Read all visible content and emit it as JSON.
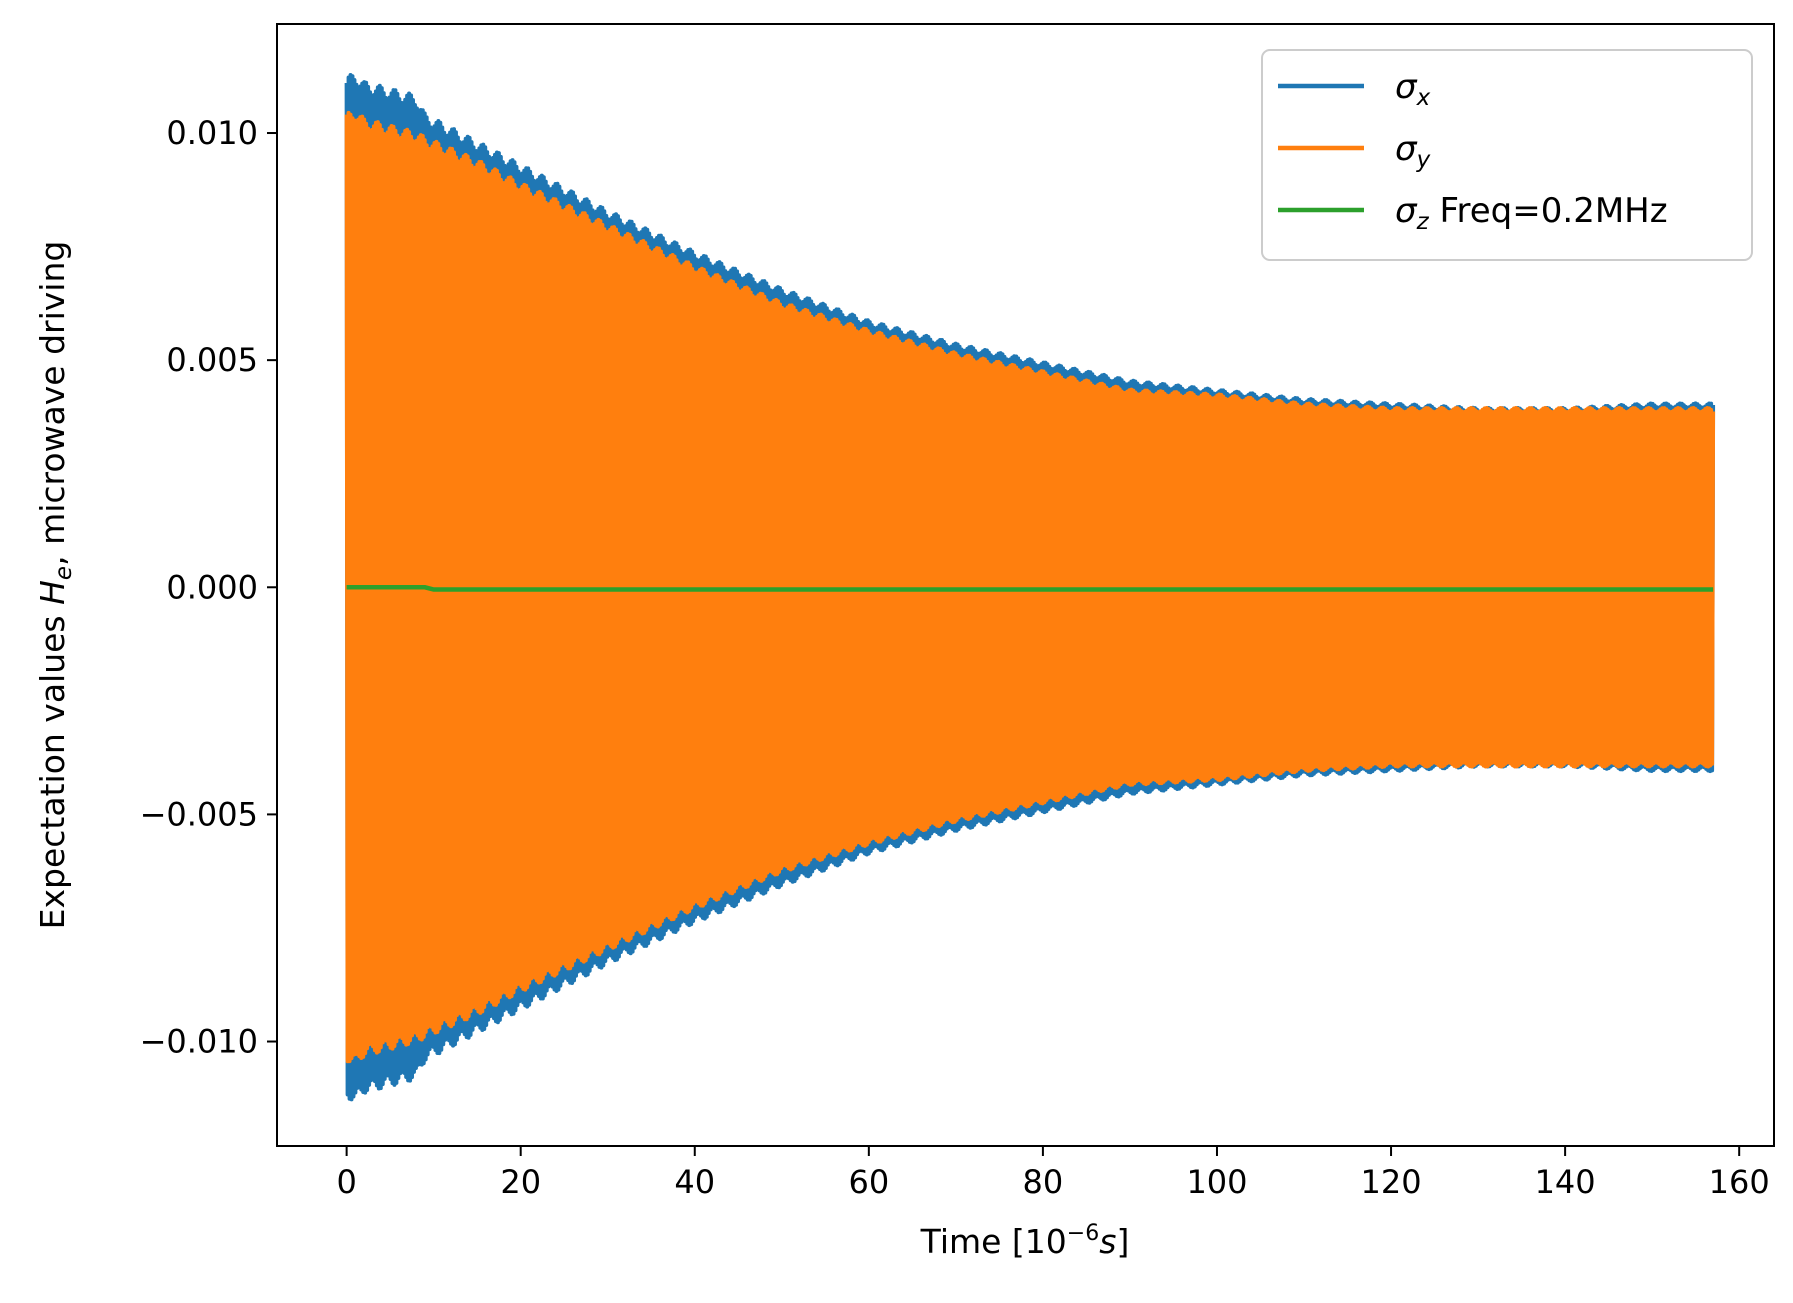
{
  "chart_data": {
    "type": "line",
    "title": "",
    "xlabel": "Time [10^{-6}s]",
    "xlabel_parts": {
      "pre": "Time [10",
      "sup": "−6",
      "s": "s",
      "post": "]"
    },
    "ylabel": "Expectation values H_e, microwave driving",
    "ylabel_parts": {
      "pre": "Expectation values ",
      "sym": "H",
      "sub": "e",
      "post": ", microwave driving"
    },
    "xlim": [
      -8,
      164
    ],
    "ylim": [
      -0.0123,
      0.0124
    ],
    "xticks": [
      0,
      20,
      40,
      60,
      80,
      100,
      120,
      140,
      160
    ],
    "xtick_labels": [
      "0",
      "20",
      "40",
      "60",
      "80",
      "100",
      "120",
      "140",
      "160"
    ],
    "yticks": [
      0.01,
      0.005,
      0.0,
      -0.005,
      -0.01
    ],
    "ytick_labels": [
      "0.010",
      "0.005",
      "0.000",
      "−0.005",
      "−0.010"
    ],
    "grid": false,
    "legend_position": "top-right",
    "series": [
      {
        "name": "σx",
        "legend_symbol": "σ",
        "legend_sub": "x",
        "legend_suffix": "",
        "color": "#1f77b4",
        "style": "fast-oscillation-envelope",
        "envelope_t": [
          0,
          1,
          2,
          4,
          6,
          8,
          9,
          15,
          20,
          30,
          40,
          50,
          60,
          70,
          80,
          90,
          100,
          110,
          120,
          130,
          140,
          150,
          157
        ],
        "envelope_amplitude": [
          0.0111,
          0.0112,
          0.011,
          0.0109,
          0.0108,
          0.0107,
          0.0103,
          0.0097,
          0.0092,
          0.0082,
          0.0073,
          0.0065,
          0.0058,
          0.0053,
          0.0049,
          0.0045,
          0.0043,
          0.0041,
          0.004,
          0.0039,
          0.0039,
          0.004,
          0.004
        ]
      },
      {
        "name": "σy",
        "legend_symbol": "σ",
        "legend_sub": "y",
        "legend_suffix": "",
        "color": "#ff7f0e",
        "style": "fast-oscillation-envelope",
        "envelope_t": [
          0,
          1,
          2,
          4,
          6,
          8,
          9,
          15,
          20,
          30,
          40,
          50,
          60,
          70,
          80,
          90,
          100,
          110,
          120,
          130,
          140,
          150,
          157
        ],
        "envelope_amplitude": [
          0.0103,
          0.0104,
          0.0102,
          0.0101,
          0.01,
          0.0099,
          0.0098,
          0.0093,
          0.0088,
          0.0079,
          0.007,
          0.0062,
          0.0056,
          0.0051,
          0.0047,
          0.0043,
          0.0042,
          0.004,
          0.0039,
          0.0039,
          0.0039,
          0.0039,
          0.0039
        ]
      },
      {
        "name": "σz Freq=0.2MHz",
        "legend_symbol": "σ",
        "legend_sub": "z",
        "legend_suffix": " Freq=0.2MHz",
        "color": "#2ca02c",
        "style": "line",
        "x": [
          0,
          2,
          5,
          9,
          10,
          40,
          80,
          120,
          157
        ],
        "values": [
          0.0,
          0.0,
          0.0,
          0.0,
          -5e-05,
          -5e-05,
          -5e-05,
          -5e-05,
          -5e-05
        ]
      }
    ]
  }
}
